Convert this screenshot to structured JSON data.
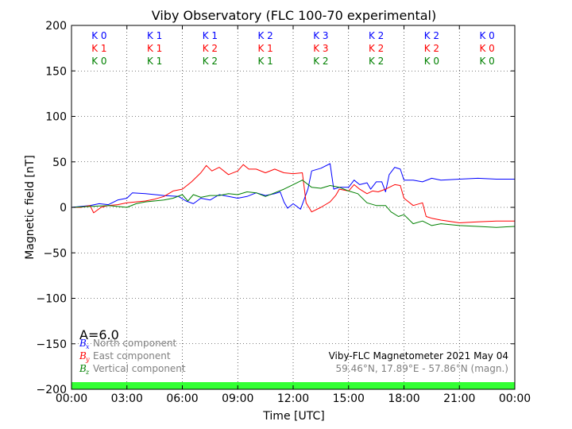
{
  "chart_data": {
    "type": "line",
    "title": "Viby Observatory (FLC 100-70 experimental)",
    "xlabel": "Time [UTC]",
    "ylabel": "Magnetic field [nT]",
    "xlim_hours": [
      0,
      24
    ],
    "ylim": [
      -200,
      200
    ],
    "x_tick_labels": [
      "00:00",
      "03:00",
      "06:00",
      "09:00",
      "12:00",
      "15:00",
      "18:00",
      "21:00",
      "00:00"
    ],
    "y_ticks": [
      -200,
      -150,
      -100,
      -50,
      0,
      50,
      100,
      150,
      200
    ],
    "y_tick_labels": [
      "−200",
      "−150",
      "−100",
      "−50",
      "0",
      "50",
      "100",
      "150",
      "200"
    ],
    "grid": true,
    "k_index": {
      "colors": {
        "x": "#0000ff",
        "y": "#ff0000",
        "z": "#008000"
      },
      "x": [
        "K 0",
        "K 1",
        "K 1",
        "K 2",
        "K 3",
        "K 2",
        "K 2",
        "K 0"
      ],
      "y": [
        "K 1",
        "K 1",
        "K 2",
        "K 1",
        "K 3",
        "K 2",
        "K 2",
        "K 0"
      ],
      "z": [
        "K 0",
        "K 1",
        "K 2",
        "K 1",
        "K 2",
        "K 2",
        "K 0",
        "K 0"
      ]
    },
    "a_index_label": "A=6.0",
    "legend": [
      {
        "symbol": "B",
        "sub": "x",
        "label": "North component",
        "color": "#0000ff"
      },
      {
        "symbol": "B",
        "sub": "y",
        "label": "East component",
        "color": "#ff0000"
      },
      {
        "symbol": "B",
        "sub": "z",
        "label": "Vertical component",
        "color": "#008000"
      }
    ],
    "info_line1": "Viby-FLC Magnetometer 2021 May 04",
    "info_line2": "59.46°N, 17.89°E - 57.86°N (magn.)",
    "activity_bar_color": "#33ff33",
    "series": [
      {
        "name": "Bx",
        "color": "#0000ff",
        "points": [
          [
            0,
            0
          ],
          [
            0.5,
            1
          ],
          [
            1,
            2
          ],
          [
            1.5,
            4
          ],
          [
            2,
            3
          ],
          [
            2.5,
            8
          ],
          [
            3,
            10
          ],
          [
            3.3,
            16
          ],
          [
            4,
            15
          ],
          [
            5,
            13
          ],
          [
            5.8,
            12
          ],
          [
            6.2,
            7
          ],
          [
            6.6,
            4
          ],
          [
            7,
            10
          ],
          [
            7.5,
            8
          ],
          [
            8,
            14
          ],
          [
            8.5,
            12
          ],
          [
            9,
            10
          ],
          [
            9.5,
            12
          ],
          [
            10,
            16
          ],
          [
            10.5,
            13
          ],
          [
            11,
            15
          ],
          [
            11.3,
            17
          ],
          [
            11.5,
            6
          ],
          [
            11.7,
            -1
          ],
          [
            12,
            4
          ],
          [
            12.4,
            -2
          ],
          [
            12.8,
            20
          ],
          [
            13,
            40
          ],
          [
            13.5,
            43
          ],
          [
            14,
            48
          ],
          [
            14.2,
            20
          ],
          [
            14.5,
            22
          ],
          [
            15,
            22
          ],
          [
            15.3,
            30
          ],
          [
            15.6,
            25
          ],
          [
            16,
            27
          ],
          [
            16.2,
            20
          ],
          [
            16.5,
            28
          ],
          [
            16.8,
            28
          ],
          [
            17,
            17
          ],
          [
            17.2,
            36
          ],
          [
            17.5,
            44
          ],
          [
            17.8,
            42
          ],
          [
            18,
            30
          ],
          [
            18.5,
            30
          ],
          [
            19,
            28
          ],
          [
            19.5,
            32
          ],
          [
            20,
            30
          ],
          [
            21,
            31
          ],
          [
            22,
            32
          ],
          [
            23,
            31
          ],
          [
            24,
            31
          ]
        ]
      },
      {
        "name": "By",
        "color": "#ff0000",
        "points": [
          [
            0,
            0
          ],
          [
            0.5,
            0
          ],
          [
            1,
            2
          ],
          [
            1.2,
            -6
          ],
          [
            1.6,
            0
          ],
          [
            2,
            2
          ],
          [
            2.5,
            3
          ],
          [
            3,
            5
          ],
          [
            3.5,
            6
          ],
          [
            4,
            7
          ],
          [
            4.5,
            9
          ],
          [
            5,
            12
          ],
          [
            5.5,
            18
          ],
          [
            6,
            20
          ],
          [
            6.5,
            28
          ],
          [
            7,
            38
          ],
          [
            7.3,
            46
          ],
          [
            7.6,
            40
          ],
          [
            8,
            44
          ],
          [
            8.5,
            36
          ],
          [
            9,
            40
          ],
          [
            9.3,
            47
          ],
          [
            9.6,
            42
          ],
          [
            10,
            42
          ],
          [
            10.5,
            38
          ],
          [
            11,
            42
          ],
          [
            11.5,
            38
          ],
          [
            12,
            37
          ],
          [
            12.5,
            38
          ],
          [
            12.7,
            5
          ],
          [
            13,
            -5
          ],
          [
            13.5,
            0
          ],
          [
            14,
            6
          ],
          [
            14.3,
            13
          ],
          [
            14.5,
            20
          ],
          [
            15,
            18
          ],
          [
            15.3,
            25
          ],
          [
            15.6,
            20
          ],
          [
            16,
            15
          ],
          [
            16.3,
            18
          ],
          [
            16.6,
            17
          ],
          [
            17,
            20
          ],
          [
            17.5,
            25
          ],
          [
            17.8,
            24
          ],
          [
            18,
            10
          ],
          [
            18.5,
            2
          ],
          [
            19,
            5
          ],
          [
            19.2,
            -10
          ],
          [
            19.5,
            -12
          ],
          [
            20,
            -14
          ],
          [
            21,
            -17
          ],
          [
            22,
            -16
          ],
          [
            23,
            -15
          ],
          [
            24,
            -15
          ]
        ]
      },
      {
        "name": "Bz",
        "color": "#008000",
        "points": [
          [
            0,
            0
          ],
          [
            1,
            1
          ],
          [
            2,
            2
          ],
          [
            2.5,
            1
          ],
          [
            3,
            0
          ],
          [
            3.5,
            4
          ],
          [
            4,
            6
          ],
          [
            5,
            8
          ],
          [
            5.5,
            10
          ],
          [
            6,
            14
          ],
          [
            6.3,
            7
          ],
          [
            6.6,
            14
          ],
          [
            7,
            11
          ],
          [
            7.5,
            13
          ],
          [
            8,
            13
          ],
          [
            8.5,
            15
          ],
          [
            9,
            14
          ],
          [
            9.5,
            17
          ],
          [
            10,
            16
          ],
          [
            10.5,
            12
          ],
          [
            11,
            16
          ],
          [
            11.5,
            20
          ],
          [
            12,
            25
          ],
          [
            12.5,
            30
          ],
          [
            13,
            22
          ],
          [
            13.5,
            21
          ],
          [
            14,
            24
          ],
          [
            14.5,
            22
          ],
          [
            15,
            18
          ],
          [
            15.5,
            15
          ],
          [
            16,
            5
          ],
          [
            16.5,
            2
          ],
          [
            17,
            2
          ],
          [
            17.3,
            -5
          ],
          [
            17.7,
            -10
          ],
          [
            18,
            -8
          ],
          [
            18.5,
            -18
          ],
          [
            19,
            -15
          ],
          [
            19.5,
            -20
          ],
          [
            20,
            -18
          ],
          [
            21,
            -20
          ],
          [
            22,
            -21
          ],
          [
            23,
            -22
          ],
          [
            24,
            -21
          ]
        ]
      }
    ]
  }
}
